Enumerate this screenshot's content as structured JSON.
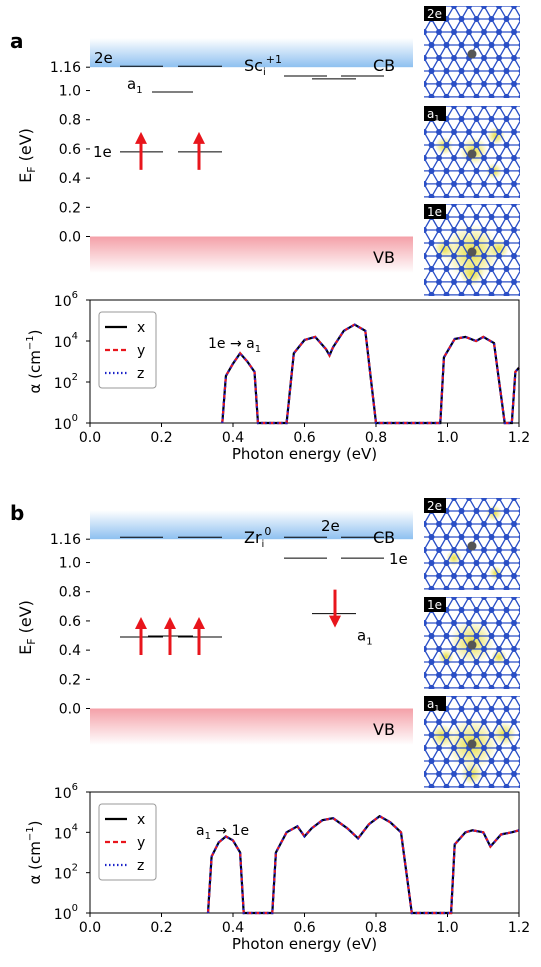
{
  "colors": {
    "cb_band": "#8ec0f0",
    "vb_band": "#f4a0a8",
    "arrow": "#e8151c",
    "lattice": "#2a4fc6",
    "density": "#e6dc3c",
    "x_line": "#000000",
    "y_line": "#e8151c",
    "z_line": "#1a22c8"
  },
  "chart_data": [
    {
      "panel": "a",
      "type": "energy-level-diagram",
      "defect_label": "Sc",
      "defect_sub": "i",
      "defect_sup": "+1",
      "ylabel_main": "E",
      "ylabel_sub": "F",
      "ylabel_unit": " (eV)",
      "cb_label": "CB",
      "vb_label": "VB",
      "yticks": [
        "0.0",
        "0.2",
        "0.4",
        "0.6",
        "0.8",
        "1.0",
        "1.16"
      ],
      "ylim": [
        -0.25,
        1.36
      ],
      "levels": [
        {
          "label": "2e",
          "energy": 1.16,
          "spin": "up"
        },
        {
          "label": "a",
          "sub": "1",
          "energy": 0.99,
          "spin": "up"
        },
        {
          "label": "1e",
          "energy": 0.58,
          "spin": "up",
          "occupied": 2
        },
        {
          "label": "",
          "energy": 1.1,
          "spin": "down"
        },
        {
          "label": "",
          "energy": 1.08,
          "spin": "down"
        }
      ],
      "orbital_tags": [
        "2e",
        "a1",
        "1e"
      ]
    },
    {
      "panel": "a",
      "type": "line",
      "ylabel_main": "α (cm",
      "ylabel_sup": "−1",
      "ylabel_end": ")",
      "xlabel": "Photon energy (eV)",
      "xlim": [
        0.0,
        1.2
      ],
      "ylim_log10": [
        0,
        6
      ],
      "xticks": [
        "0.0",
        "0.2",
        "0.4",
        "0.6",
        "0.8",
        "1.0",
        "1.2"
      ],
      "yticks": [
        "10",
        "10",
        "10",
        "10"
      ],
      "ytick_exps": [
        "0",
        "2",
        "4",
        "6"
      ],
      "annotation": "1e → a",
      "annotation_sub": "1",
      "legend": [
        "x",
        "y",
        "z"
      ],
      "legend_position": "top-left",
      "x": [
        0.37,
        0.38,
        0.4,
        0.42,
        0.44,
        0.46,
        0.47,
        0.55,
        0.57,
        0.6,
        0.63,
        0.66,
        0.67,
        0.68,
        0.71,
        0.74,
        0.77,
        0.8,
        0.98,
        0.99,
        1.02,
        1.05,
        1.08,
        1.1,
        1.13,
        1.16,
        1.18,
        1.19,
        1.2
      ],
      "log10_alpha": [
        0,
        2.3,
        2.9,
        3.4,
        3.0,
        2.5,
        0,
        0,
        3.4,
        4.05,
        4.2,
        3.6,
        3.3,
        3.7,
        4.5,
        4.8,
        4.5,
        0,
        0,
        3.2,
        4.1,
        4.2,
        4.0,
        4.2,
        3.9,
        0,
        0,
        2.5,
        2.7
      ]
    },
    {
      "panel": "b",
      "type": "energy-level-diagram",
      "defect_label": "Zr",
      "defect_sub": "i",
      "defect_sup": "0",
      "ylabel_main": "E",
      "ylabel_sub": "F",
      "ylabel_unit": " (eV)",
      "cb_label": "CB",
      "vb_label": "VB",
      "yticks": [
        "0.0",
        "0.2",
        "0.4",
        "0.6",
        "0.8",
        "1.0",
        "1.16"
      ],
      "ylim": [
        -0.25,
        1.36
      ],
      "levels": [
        {
          "label": "",
          "energy": 1.16,
          "spin": "up"
        },
        {
          "label": "",
          "energy": 0.49,
          "spin": "up",
          "occupied": 3
        },
        {
          "label": "2e",
          "energy": 1.16,
          "spin": "down"
        },
        {
          "label": "1e",
          "energy": 1.03,
          "spin": "down"
        },
        {
          "label": "a",
          "sub": "1",
          "energy": 0.65,
          "spin": "down",
          "occupied": 1
        }
      ],
      "orbital_tags": [
        "2e",
        "1e",
        "a1"
      ]
    },
    {
      "panel": "b",
      "type": "line",
      "ylabel_main": "α (cm",
      "ylabel_sup": "−1",
      "ylabel_end": ")",
      "xlabel": "Photon energy (eV)",
      "xlim": [
        0.0,
        1.2
      ],
      "ylim_log10": [
        0,
        6
      ],
      "xticks": [
        "0.0",
        "0.2",
        "0.4",
        "0.6",
        "0.8",
        "1.0",
        "1.2"
      ],
      "yticks": [
        "10",
        "10",
        "10",
        "10"
      ],
      "ytick_exps": [
        "0",
        "2",
        "4",
        "6"
      ],
      "annotation": "a",
      "annotation_sub": "1",
      "annotation_tail": " → 1e",
      "legend": [
        "x",
        "y",
        "z"
      ],
      "legend_position": "top-left",
      "x": [
        0.33,
        0.34,
        0.36,
        0.38,
        0.4,
        0.42,
        0.43,
        0.51,
        0.52,
        0.55,
        0.58,
        0.6,
        0.62,
        0.65,
        0.68,
        0.72,
        0.75,
        0.78,
        0.81,
        0.84,
        0.87,
        0.9,
        1.01,
        1.02,
        1.05,
        1.07,
        1.1,
        1.12,
        1.15,
        1.18,
        1.2
      ],
      "log10_alpha": [
        0,
        2.8,
        3.5,
        3.8,
        3.6,
        3.0,
        0,
        0,
        3.0,
        4.0,
        4.3,
        3.8,
        4.2,
        4.6,
        4.7,
        4.2,
        3.7,
        4.4,
        4.8,
        4.5,
        4.0,
        0,
        0,
        3.4,
        4.0,
        4.1,
        4.0,
        3.3,
        3.9,
        4.0,
        4.1
      ]
    }
  ]
}
